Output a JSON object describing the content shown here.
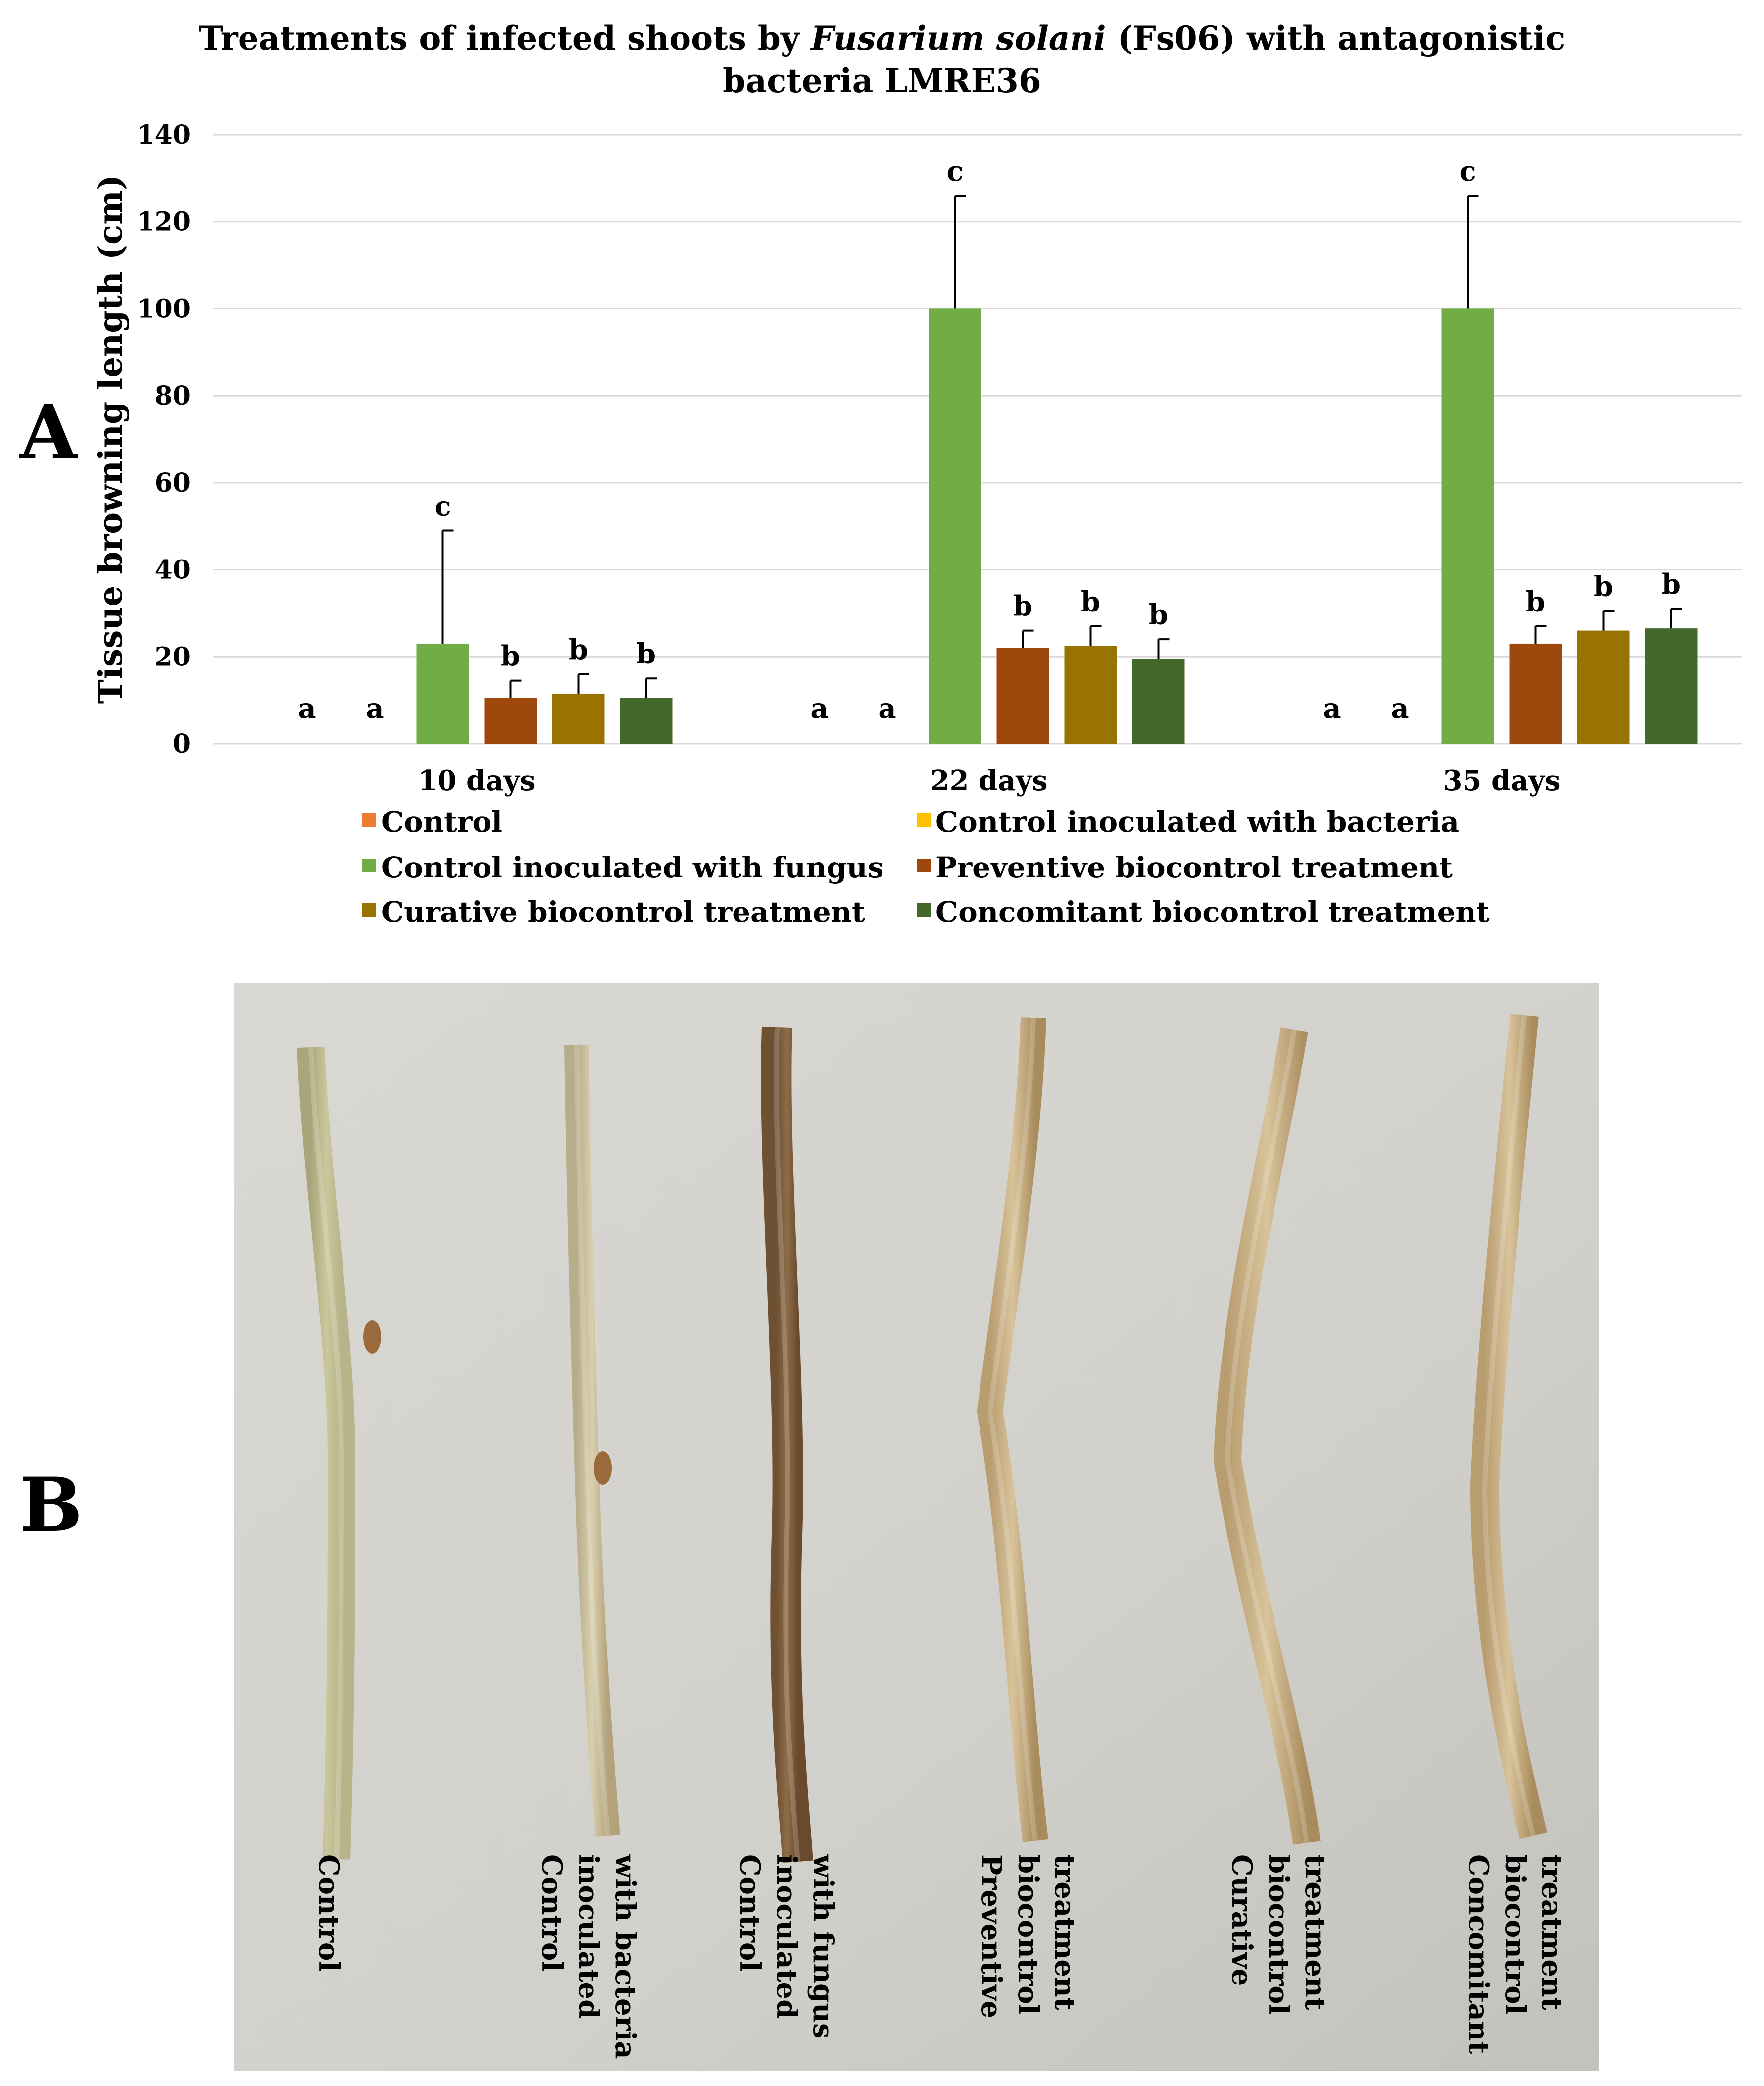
{
  "figure": {
    "panel_a_label": "A",
    "panel_b_label": "B"
  },
  "chart_data": {
    "type": "bar",
    "title_part1": "Treatments of infected shoots by ",
    "title_italic": "Fusarium solani",
    "title_part2": " (Fs06) with antagonistic",
    "title_line2": "bacteria LMRE36",
    "ylabel": "Tissue browning length (cm)",
    "xlabel": "",
    "ylim": [
      0,
      140
    ],
    "yticks": [
      0,
      20,
      40,
      60,
      80,
      100,
      120,
      140
    ],
    "grid": true,
    "legend_position": "bottom",
    "categories": [
      "10 days",
      "22 days",
      "35 days"
    ],
    "series": [
      {
        "name": "Control",
        "color": "#ED7D31",
        "values": [
          0,
          0,
          0
        ],
        "errors": [
          0,
          0,
          0
        ],
        "letters": [
          "a",
          "a",
          "a"
        ]
      },
      {
        "name": "Control inoculated with bacteria",
        "color": "#FFC000",
        "values": [
          0,
          0,
          0
        ],
        "errors": [
          0,
          0,
          0
        ],
        "letters": [
          "a",
          "a",
          "a"
        ]
      },
      {
        "name": "Control inoculated with fungus",
        "color": "#70AD47",
        "values": [
          23,
          100,
          100
        ],
        "errors": [
          26,
          26,
          26
        ],
        "letters": [
          "c",
          "c",
          "c"
        ]
      },
      {
        "name": "Preventive biocontrol treatment",
        "color": "#9E480E",
        "values": [
          10.5,
          22,
          23
        ],
        "errors": [
          4,
          4,
          4
        ],
        "letters": [
          "b",
          "b",
          "b"
        ]
      },
      {
        "name": "Curative biocontrol treatment",
        "color": "#997300",
        "values": [
          11.5,
          22.5,
          26
        ],
        "errors": [
          4.5,
          4.5,
          4.5
        ],
        "letters": [
          "b",
          "b",
          "b"
        ]
      },
      {
        "name": "Concomitant biocontrol treatment",
        "color": "#43682B",
        "values": [
          10.5,
          19.5,
          26.5
        ],
        "errors": [
          4.5,
          4.5,
          4.5
        ],
        "letters": [
          "b",
          "b",
          "b"
        ]
      }
    ]
  },
  "photo": {
    "description_colors": {
      "background": "#d2d0cb",
      "pale_wood": "#cbc79c",
      "tan_wood": "#b49a6c",
      "dark_wood": "#7b5c3a"
    },
    "shoots": [
      {
        "label_lines": [
          "Control"
        ],
        "tone": "pale"
      },
      {
        "label_lines": [
          "Control",
          "inoculated",
          "with bacteria"
        ],
        "tone": "light"
      },
      {
        "label_lines": [
          "Control",
          "inoculated",
          "with fungus"
        ],
        "tone": "dark"
      },
      {
        "label_lines": [
          "Preventive",
          "biocontrol",
          "treatment"
        ],
        "tone": "tan"
      },
      {
        "label_lines": [
          "Curative",
          "biocontrol",
          "treatment"
        ],
        "tone": "tan"
      },
      {
        "label_lines": [
          "Concomitant",
          "biocontrol",
          "treatment"
        ],
        "tone": "tan"
      }
    ]
  }
}
